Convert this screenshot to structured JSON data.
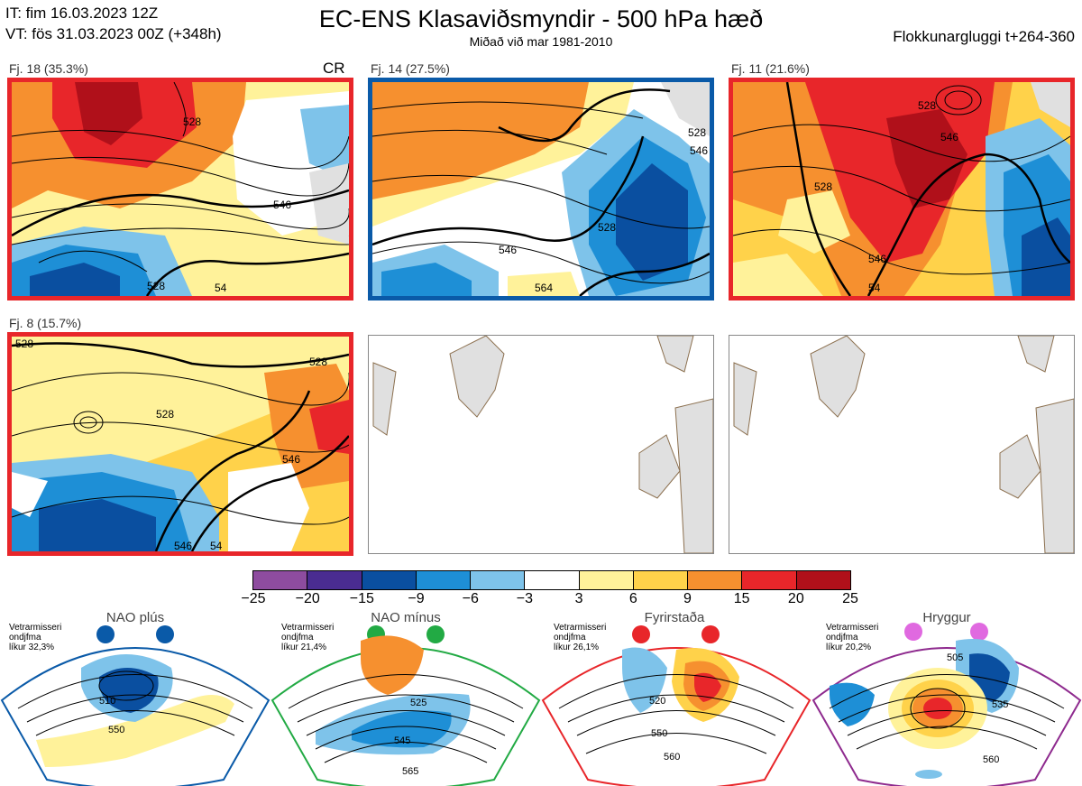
{
  "header": {
    "it": "IT: fim 16.03.2023 12Z",
    "vt": "VT: fös 31.03.2023 00Z  (+348h)",
    "title": "EC-ENS Klasaviðsmyndir - 500 hPa hæð",
    "subtitle": "Miðað við mar 1981-2010",
    "window": "Flokkunargluggi t+264-360"
  },
  "panels": [
    {
      "label": "Fj. 18 (35.3%)",
      "tag": "CR",
      "border": "#e8262a",
      "contours": [
        "528",
        "546",
        "528",
        "54"
      ]
    },
    {
      "label": "Fj. 14 (27.5%)",
      "tag": "",
      "border": "#0a5aa8",
      "contours": [
        "528",
        "546",
        "528",
        "546",
        "564"
      ]
    },
    {
      "label": "Fj. 11 (21.6%)",
      "tag": "",
      "border": "#e8262a",
      "contours": [
        "528",
        "546",
        "528",
        "546",
        "54"
      ]
    },
    {
      "label": "Fj. 8 (15.7%)",
      "tag": "",
      "border": "#e8262a",
      "contours": [
        "528",
        "528",
        "546",
        "528",
        "546",
        "54"
      ]
    }
  ],
  "colorbar": {
    "ticks": [
      "−25",
      "−20",
      "−15",
      "−9",
      "−6",
      "−3",
      "3",
      "6",
      "9",
      "15",
      "20",
      "25"
    ],
    "colors": [
      "#8e4c9f",
      "#4a2c91",
      "#0a4fa0",
      "#1e8fd6",
      "#7ec3ea",
      "#ffffff",
      "#fff29a",
      "#ffd24a",
      "#f6902f",
      "#e8262a",
      "#b0101a"
    ]
  },
  "regimes": [
    {
      "name": "NAO plús",
      "meta1": "Vetrarmisseri",
      "meta2": "ondjfma",
      "meta3": "líkur 32,3%",
      "color": "#0a5aa8",
      "contours": [
        "510",
        "550"
      ]
    },
    {
      "name": "NAO mínus",
      "meta1": "Vetrarmisseri",
      "meta2": "ondjfma",
      "meta3": "líkur 21,4%",
      "color": "#22aa44",
      "contours": [
        "525",
        "545",
        "565"
      ]
    },
    {
      "name": "Fyrirstaða",
      "meta1": "Vetrarmisseri",
      "meta2": "ondjfma",
      "meta3": "líkur 26,1%",
      "color": "#e8262a",
      "contours": [
        "520",
        "550",
        "560"
      ]
    },
    {
      "name": "Hryggur",
      "meta1": "Vetrarmisseri",
      "meta2": "ondjfma",
      "meta3": "líkur 20,2%",
      "color": "#e069e0",
      "contours": [
        "505",
        "535",
        "560"
      ]
    }
  ]
}
